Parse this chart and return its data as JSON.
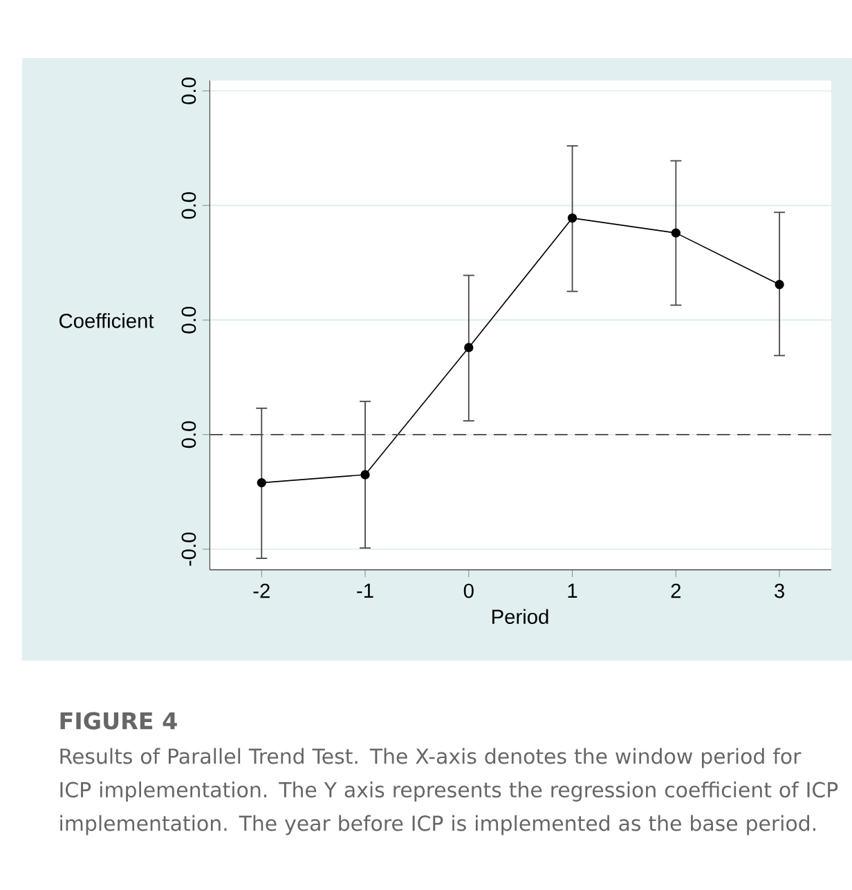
{
  "chart_data": {
    "type": "line",
    "title": "FIGURE 4",
    "xlabel": "Period",
    "ylabel": "Coefficient",
    "annotations": [
      "Results of Parallel Trend Test. The X-axis denotes the window period for ICP implementation. The Y axis represents the regression coefficient of ICP implementation. The year before ICP is implemented as the base period."
    ],
    "x": [
      -2,
      -1,
      0,
      1,
      2,
      3
    ],
    "xlim": [
      -2.5,
      3.5
    ],
    "xticks": [
      -2,
      -1,
      0,
      1,
      2,
      3
    ],
    "ylim": [
      -0.0118,
      0.0309
    ],
    "yticks": [
      {
        "value": -0.01,
        "label": "-0.0"
      },
      {
        "value": 0,
        "label": "0.0"
      },
      {
        "value": 0.01,
        "label": "0.0"
      },
      {
        "value": 0.02,
        "label": "0.0"
      },
      {
        "value": 0.03,
        "label": "0.0"
      }
    ],
    "series": [
      {
        "color": "#000000",
        "values": [
          -0.0042,
          -0.0035,
          0.0076,
          0.0189,
          0.0176,
          0.0131
        ],
        "errors": [
          [
            -0.0108,
            0.0023
          ],
          [
            -0.0099,
            0.0029
          ],
          [
            0.0012,
            0.0139
          ],
          [
            0.0125,
            0.0252
          ],
          [
            0.0113,
            0.0239
          ],
          [
            0.0069,
            0.0194
          ]
        ]
      }
    ],
    "ref_lines": [
      {
        "axis": "y",
        "value": 0,
        "line_style": "dashed",
        "color": "#555555"
      }
    ],
    "grid": "y",
    "marker": "circle",
    "line_style": "solid"
  }
}
